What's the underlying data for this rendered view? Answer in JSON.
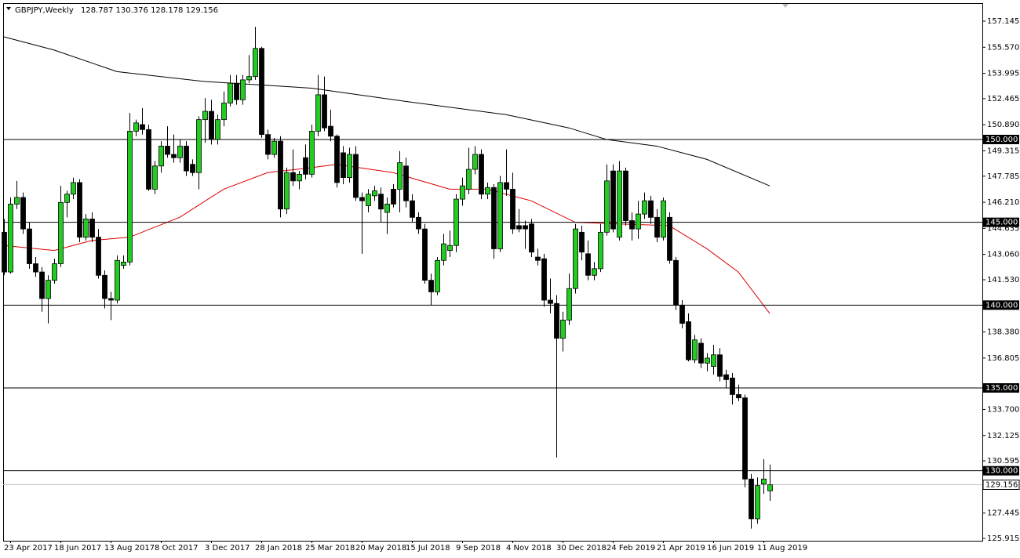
{
  "chart_data": {
    "type": "candlestick",
    "title": "GBPJPY,Weekly",
    "up_color": "#22cc22",
    "down_color": "#000000",
    "categories": [
      null,
      "23 Apr 2017",
      null,
      null,
      null,
      null,
      null,
      null,
      null,
      "18 Jun 2017",
      null,
      null,
      null,
      null,
      null,
      null,
      null,
      "13 Aug 2017",
      null,
      null,
      null,
      null,
      null,
      null,
      null,
      "8 Oct 2017",
      null,
      null,
      null,
      null,
      null,
      null,
      null,
      "3 Dec 2017",
      null,
      null,
      null,
      null,
      null,
      null,
      null,
      "28 Jan 2018",
      null,
      null,
      null,
      null,
      null,
      null,
      null,
      "25 Mar 2018",
      null,
      null,
      null,
      null,
      null,
      null,
      null,
      "20 May 2018",
      null,
      null,
      null,
      null,
      null,
      null,
      null,
      "15 Jul 2018",
      null,
      null,
      null,
      null,
      null,
      null,
      null,
      "9 Sep 2018",
      null,
      null,
      null,
      null,
      null,
      null,
      null,
      "4 Nov 2018",
      null,
      null,
      null,
      null,
      null,
      null,
      null,
      "30 Dec 2018",
      null,
      null,
      null,
      null,
      null,
      null,
      null,
      "24 Feb 2019",
      null,
      null,
      null,
      null,
      null,
      null,
      null,
      "21 Apr 2019",
      null,
      null,
      null,
      null,
      null,
      null,
      null,
      "16 Jun 2019",
      null,
      null,
      null,
      null,
      null,
      null,
      null,
      "11 Aug 2019",
      null
    ],
    "open": [
      144.4,
      142.0,
      146.1,
      146.5,
      144.6,
      142.5,
      142.0,
      140.4,
      141.5,
      142.5,
      146.2,
      146.7,
      147.4,
      144.1,
      145.2,
      144.1,
      141.8,
      140.4,
      140.3,
      142.4,
      142.6,
      150.5,
      150.9,
      150.6,
      147.0,
      148.4,
      149.6,
      149.1,
      148.9,
      149.6,
      148.5,
      148.0,
      151.2,
      151.7,
      150.0,
      151.2,
      152.2,
      153.4,
      152.4,
      153.6,
      153.8,
      155.5,
      150.3,
      149.1,
      149.9,
      145.8,
      148.0,
      147.5,
      148.9,
      147.9,
      150.5,
      152.7,
      150.8,
      150.2,
      149.2,
      147.7,
      149.1,
      146.5,
      146.0,
      146.6,
      146.7,
      145.6,
      147.0,
      147.0,
      148.4,
      146.3,
      145.3,
      144.6,
      141.5,
      140.8,
      142.7,
      143.3,
      143.6,
      146.4,
      147.0,
      148.2,
      149.1,
      146.7,
      147.1,
      143.4,
      147.4,
      147.0,
      144.8,
      144.8,
      144.9,
      142.9,
      142.8,
      140.3,
      140.1,
      138.0,
      139.1,
      141.0,
      144.4,
      143.1,
      141.8,
      142.2,
      144.4,
      148.1,
      144.1,
      148.1,
      145.1,
      144.6,
      145.5,
      146.3,
      145.3,
      144.1,
      145.3,
      142.7,
      140.0,
      139.0,
      136.7,
      137.7,
      136.5,
      136.3,
      137.0,
      135.8,
      135.6,
      134.6,
      134.4,
      129.5,
      127.1,
      129.2,
      128.787
    ],
    "high": [
      145.2,
      146.5,
      147.5,
      146.8,
      145.0,
      142.9,
      142.3,
      141.8,
      142.8,
      147.2,
      146.9,
      147.7,
      147.6,
      145.5,
      145.6,
      144.6,
      142.1,
      140.8,
      143.0,
      143.0,
      151.6,
      151.2,
      151.9,
      150.9,
      148.7,
      149.9,
      150.8,
      150.3,
      150.0,
      149.9,
      148.8,
      151.4,
      152.5,
      152.4,
      151.5,
      152.9,
      153.9,
      153.9,
      153.9,
      155.1,
      156.8,
      155.6,
      150.6,
      150.1,
      150.2,
      148.3,
      149.4,
      148.1,
      149.7,
      150.9,
      153.9,
      153.8,
      151.8,
      150.3,
      149.6,
      149.5,
      149.6,
      146.8,
      147.0,
      147.2,
      147.1,
      146.5,
      147.3,
      149.3,
      148.9,
      146.7,
      145.6,
      144.9,
      141.9,
      142.9,
      144.3,
      144.5,
      146.7,
      147.7,
      149.5,
      149.6,
      149.4,
      147.4,
      147.3,
      147.8,
      149.4,
      148.0,
      145.8,
      145.1,
      145.2,
      143.4,
      143.1,
      141.6,
      140.6,
      139.6,
      141.9,
      144.9,
      144.8,
      143.9,
      142.6,
      144.9,
      148.5,
      148.5,
      148.7,
      148.3,
      145.6,
      146.3,
      146.8,
      146.6,
      145.8,
      146.5,
      145.6,
      142.9,
      140.3,
      139.5,
      138.2,
      138.0,
      137.1,
      137.6,
      137.4,
      136.1,
      135.9,
      135.2,
      134.6,
      129.8,
      129.6,
      130.7,
      130.376
    ],
    "low": [
      141.8,
      141.9,
      145.8,
      144.3,
      142.2,
      141.7,
      139.6,
      138.9,
      141.3,
      142.3,
      145.3,
      146.4,
      143.8,
      143.9,
      143.8,
      141.6,
      139.8,
      139.1,
      140.1,
      142.2,
      142.4,
      150.2,
      150.3,
      146.9,
      146.7,
      148.0,
      148.9,
      148.6,
      148.6,
      147.8,
      147.8,
      147.0,
      149.8,
      149.7,
      149.7,
      150.8,
      152.0,
      152.1,
      152.1,
      153.4,
      153.6,
      150.1,
      148.8,
      148.9,
      145.3,
      145.5,
      147.2,
      147.0,
      147.6,
      147.7,
      150.2,
      150.5,
      149.9,
      147.1,
      147.3,
      147.4,
      146.3,
      143.1,
      145.6,
      146.3,
      145.0,
      144.3,
      145.9,
      145.6,
      145.9,
      145.0,
      144.3,
      141.3,
      140.0,
      140.6,
      142.4,
      142.9,
      143.2,
      146.0,
      146.7,
      147.9,
      146.4,
      146.4,
      142.8,
      143.2,
      146.6,
      144.3,
      144.4,
      143.4,
      142.9,
      142.4,
      139.9,
      139.5,
      130.8,
      137.2,
      138.8,
      140.7,
      142.7,
      141.5,
      141.5,
      142.0,
      144.2,
      144.4,
      143.9,
      144.8,
      143.9,
      144.0,
      145.2,
      144.9,
      143.8,
      143.9,
      142.5,
      139.7,
      138.6,
      136.6,
      136.5,
      136.2,
      136.0,
      135.8,
      135.4,
      135.0,
      134.0,
      134.2,
      129.0,
      126.5,
      126.8,
      128.6,
      128.178
    ],
    "close": [
      142.0,
      146.1,
      146.5,
      144.6,
      142.5,
      142.0,
      140.4,
      141.5,
      142.5,
      146.2,
      146.7,
      147.4,
      144.1,
      145.2,
      144.1,
      141.8,
      140.4,
      140.3,
      142.7,
      142.6,
      150.5,
      151.0,
      150.6,
      147.0,
      148.4,
      149.6,
      149.1,
      148.9,
      149.6,
      148.1,
      148.0,
      151.2,
      151.7,
      150.0,
      151.2,
      152.2,
      153.4,
      152.4,
      153.6,
      153.8,
      155.5,
      150.3,
      149.1,
      149.9,
      145.8,
      148.0,
      147.5,
      147.9,
      147.9,
      150.5,
      152.7,
      150.7,
      150.2,
      147.4,
      147.7,
      149.1,
      146.5,
      146.3,
      146.7,
      146.9,
      145.8,
      146.1,
      146.1,
      148.6,
      146.3,
      145.3,
      144.6,
      141.5,
      140.8,
      142.7,
      143.7,
      143.6,
      146.4,
      147.2,
      148.2,
      149.1,
      146.7,
      147.1,
      143.4,
      147.4,
      147.0,
      144.6,
      144.6,
      144.6,
      143.2,
      142.7,
      140.3,
      140.1,
      138.0,
      139.1,
      141.0,
      144.6,
      143.2,
      141.8,
      142.2,
      144.4,
      147.5,
      144.6,
      148.1,
      145.1,
      144.6,
      145.5,
      146.3,
      145.3,
      144.1,
      146.3,
      142.7,
      140.0,
      138.9,
      136.7,
      137.9,
      136.5,
      136.8,
      137.0,
      135.7,
      135.5,
      134.6,
      134.4,
      129.5,
      127.1,
      129.1,
      129.5,
      129.156
    ],
    "moving_averages": [
      {
        "color": "#000000",
        "x": [
          0,
          8,
          18,
          32,
          49,
          64,
          80,
          90,
          96,
          104,
          112,
          122
        ],
        "values": [
          156.2,
          155.4,
          154.1,
          153.5,
          153.1,
          152.3,
          151.5,
          150.7,
          150.0,
          149.6,
          148.8,
          147.2
        ]
      },
      {
        "color": "#dd0000",
        "x": [
          0,
          8,
          14,
          20,
          28,
          35,
          42,
          49,
          53,
          62,
          71,
          77,
          84,
          91,
          98,
          106,
          112,
          117,
          122
        ],
        "values": [
          143.6,
          143.3,
          143.9,
          144.1,
          145.3,
          147.0,
          148.0,
          148.3,
          148.5,
          148.0,
          147.0,
          147.0,
          146.3,
          145.0,
          144.9,
          144.8,
          143.4,
          142.0,
          139.5
        ]
      }
    ],
    "ylim": [
      125.773,
      158.233
    ],
    "yticks": [
      157.145,
      {
        "value": 155.57,
        "label": "155.570"
      },
      153.995,
      152.465,
      {
        "value": 150.89,
        "label": "150.890"
      },
      149.315,
      147.785,
      {
        "value": 146.21,
        "label": "146.210"
      },
      144.635,
      {
        "value": 143.06,
        "label": "143.060"
      },
      {
        "value": 141.53,
        "label": "141.530"
      },
      {
        "value": 138.38,
        "label": "138.380"
      },
      136.805,
      {
        "value": 133.7,
        "label": "133.700"
      },
      132.125,
      130.595,
      127.445,
      125.915
    ],
    "levels": [
      {
        "value": 150,
        "label": "150.000"
      },
      {
        "value": 145,
        "label": "145.000"
      },
      {
        "value": 140,
        "label": "140.000"
      },
      {
        "value": 135,
        "label": "135.000"
      },
      {
        "value": 130,
        "label": "130.000"
      }
    ]
  }
}
